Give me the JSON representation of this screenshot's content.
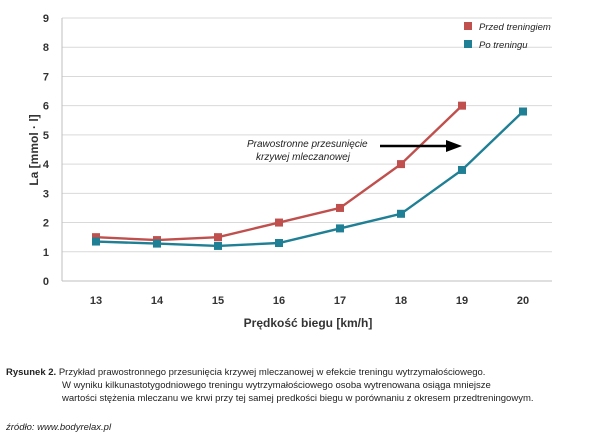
{
  "chart_data": {
    "type": "line",
    "xlabel": "Prędkość biegu [km/h]",
    "ylabel": "La [mmol · l]",
    "xlim": [
      13,
      20
    ],
    "ylim": [
      0,
      9
    ],
    "x_ticks": [
      "13",
      "14",
      "15",
      "16",
      "17",
      "18",
      "19",
      "20"
    ],
    "y_ticks": [
      "0",
      "1",
      "2",
      "3",
      "4",
      "5",
      "6",
      "7",
      "8",
      "9"
    ],
    "grid": true,
    "legend_position": "top-right",
    "series": [
      {
        "name": "Przed treningiem",
        "color": "#c0504d",
        "x": [
          13,
          14,
          15,
          16,
          17,
          18,
          19
        ],
        "values": [
          1.5,
          1.4,
          1.5,
          2.0,
          2.5,
          4.0,
          6.0
        ]
      },
      {
        "name": "Po treningu",
        "color": "#1f7f94",
        "x": [
          13,
          14,
          15,
          16,
          17,
          18,
          19,
          20
        ],
        "values": [
          1.35,
          1.28,
          1.2,
          1.3,
          1.8,
          2.3,
          3.8,
          5.8
        ]
      }
    ],
    "annotation": {
      "lines": [
        "Prawostronne przesunięcie",
        "krzywej mleczanowej"
      ]
    }
  },
  "caption": {
    "label": "Rysunek 2.",
    "lines": [
      "Przykład prawostronnego przesunięcia krzywej mleczanowej w efekcie treningu wytrzymałościowego.",
      "W wyniku kilkunastotygodniowego treningu wytrzymałościowego osoba wytrenowana osiąga mniejsze",
      "wartości stężenia mleczanu we krwi przy tej samej predkości biegu w porównaniu z okresem przedtreningowym."
    ]
  },
  "source": "źródło: www.bodyrelax.pl"
}
